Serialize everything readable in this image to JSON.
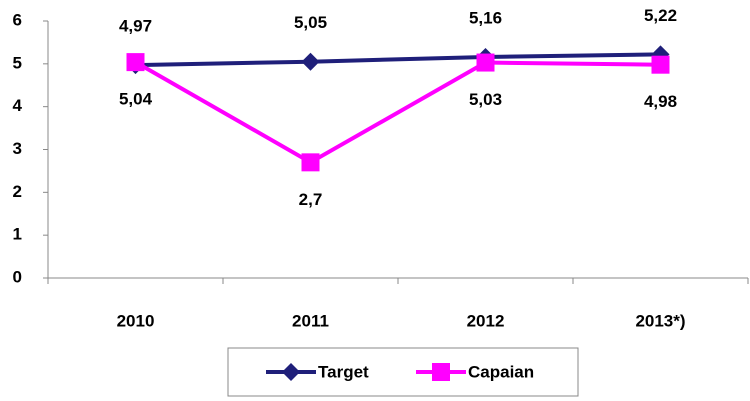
{
  "chart_data": {
    "type": "line",
    "categories": [
      "2010",
      "2011",
      "2012",
      "2013*)"
    ],
    "series": [
      {
        "name": "Target",
        "color": "#1f1f7a",
        "marker": "diamond",
        "values": [
          4.97,
          5.05,
          5.16,
          5.22
        ],
        "value_labels": [
          "4,97",
          "5,05",
          "5,16",
          "5,22"
        ]
      },
      {
        "name": "Capaian",
        "color": "#ff00ff",
        "marker": "square",
        "values": [
          5.04,
          2.7,
          5.03,
          4.98
        ],
        "value_labels": [
          "5,04",
          "2,7",
          "5,03",
          "4,98"
        ]
      }
    ],
    "ylim": [
      0,
      6
    ],
    "yticks": [
      0,
      1,
      2,
      3,
      4,
      5,
      6
    ],
    "grid": false,
    "legend": "bottom"
  }
}
